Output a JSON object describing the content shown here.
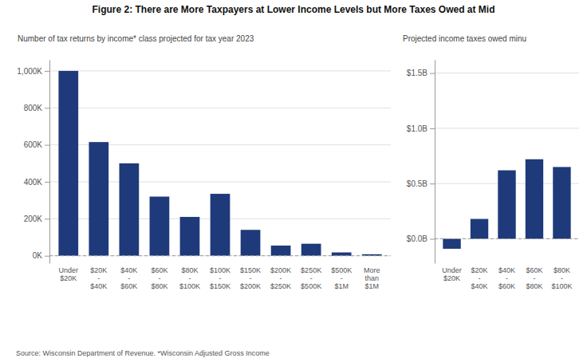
{
  "chart_data": [
    {
      "type": "bar",
      "title": "Figure 2: There are More Taxpayers at Lower Income Levels but More Taxes Owed at Mid",
      "subtitle": "Number of tax returns by income* class projected for tax year 2023",
      "annotations": [
        "Source: Wisconsin Department of Revenue.  *Wisconsin Adjusted Gross Income"
      ],
      "categories": [
        "Under\n$20K",
        "$20K\n-\n$40K",
        "$40K\n-\n$60K",
        "$60K\n-\n$80K",
        "$80K\n-\n$100K",
        "$100K\n-\n$150K",
        "$150K\n-\n$200K",
        "$200K\n-\n$250K",
        "$250K\n-\n$500K",
        "$500K\n-\n$1M",
        "More\nthan\n$1M"
      ],
      "values": [
        1000000,
        615000,
        500000,
        320000,
        210000,
        335000,
        140000,
        55000,
        65000,
        18000,
        8000
      ],
      "color": "#1F3A7A",
      "ylim": [
        -40000,
        1060000
      ],
      "yticks": [
        {
          "value": 0,
          "label": "0K"
        },
        {
          "value": 200000,
          "label": "200K"
        },
        {
          "value": 400000,
          "label": "400K"
        },
        {
          "value": 600000,
          "label": "600K"
        },
        {
          "value": 800000,
          "label": "800K"
        },
        {
          "value": 1000000,
          "label": "1,000K"
        }
      ],
      "grid": true
    },
    {
      "type": "bar",
      "subtitle": "Projected income taxes owed minu",
      "categories": [
        "Under\n$20K",
        "$20K\n-\n$40K",
        "$40K\n-\n$60K",
        "$60K\n-\n$80K",
        "$80K\n-\n$100K"
      ],
      "values": [
        -0.09,
        0.18,
        0.62,
        0.72,
        0.65
      ],
      "color": "#1F3A7A",
      "ylim": [
        -0.22,
        1.62
      ],
      "yticks": [
        {
          "value": 0.0,
          "label": "$0.0B"
        },
        {
          "value": 0.5,
          "label": "$0.5B"
        },
        {
          "value": 1.0,
          "label": "$1.0B"
        },
        {
          "value": 1.5,
          "label": "$1.5B"
        }
      ],
      "grid": true
    }
  ]
}
